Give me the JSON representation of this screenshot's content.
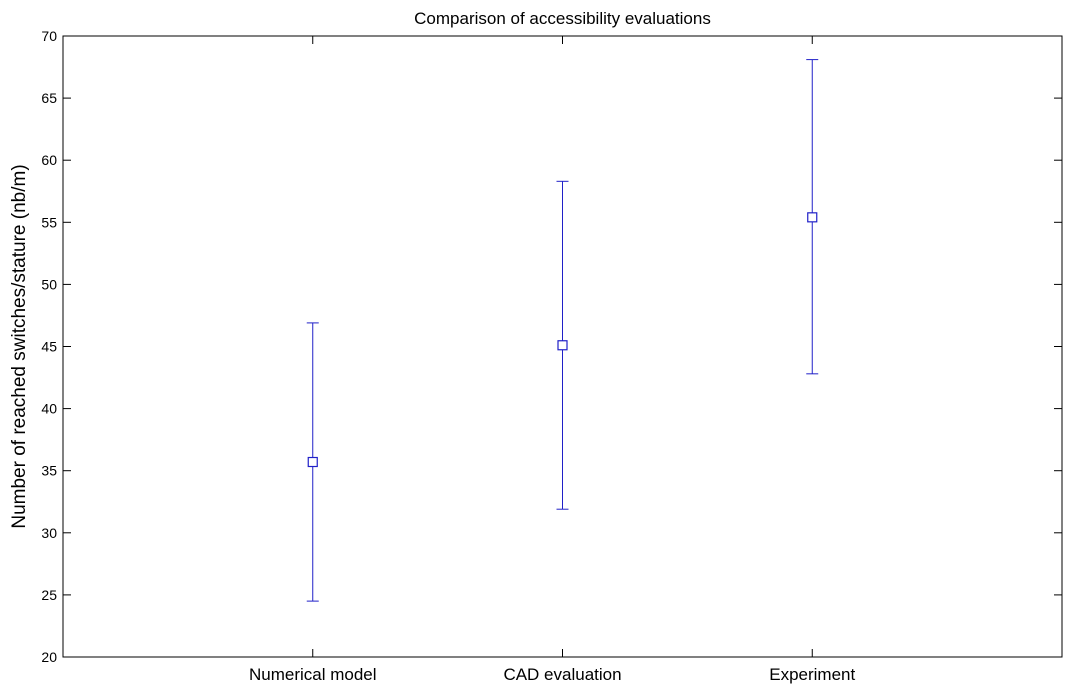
{
  "chart_data": {
    "type": "scatter",
    "title": "Comparison of accessibility evaluations",
    "xlabel": "",
    "ylabel": "Number of reached switches/stature (nb/m)",
    "categories": [
      "Numerical model",
      "CAD evaluation",
      "Experiment"
    ],
    "series": [
      {
        "values": [
          35.7,
          45.1,
          55.4
        ],
        "lower": [
          24.5,
          31.9,
          42.8
        ],
        "upper": [
          46.9,
          58.3,
          68.1
        ]
      }
    ],
    "ylim": [
      20,
      70
    ],
    "yticks": [
      "20",
      "25",
      "30",
      "35",
      "40",
      "45",
      "50",
      "55",
      "60",
      "65",
      "70"
    ],
    "xlim": [
      0,
      4
    ],
    "grid": false,
    "marker": "square",
    "colors": {
      "series": "#2020c8",
      "axes": "#000000"
    }
  }
}
